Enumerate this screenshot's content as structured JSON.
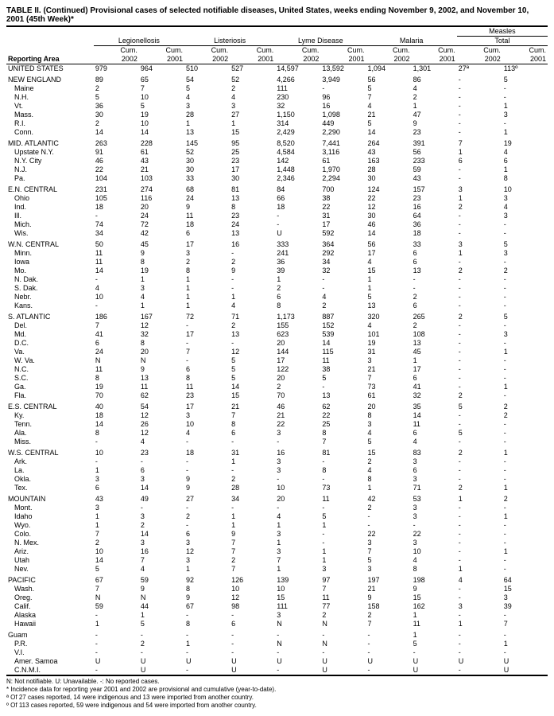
{
  "title": "TABLE II. (Continued) Provisional cases of selected notifiable diseases, United States, weeks ending November 9, 2002, and November 10, 2001 (45th Week)*",
  "columns": {
    "area_label": "Reporting Area",
    "groups": [
      "Legionellosis",
      "Listeriosis",
      "Lyme Disease",
      "Malaria",
      "Measles Total"
    ],
    "measles_super": "Measles",
    "measles_sub": "Total",
    "sub": [
      "Cum. 2002",
      "Cum. 2001"
    ]
  },
  "sections": [
    {
      "rows": [
        [
          "UNITED STATES",
          "979",
          "964",
          "510",
          "527",
          "14,597",
          "13,592",
          "1,094",
          "1,301",
          "27ª",
          "113º"
        ]
      ]
    },
    {
      "rows": [
        [
          "NEW ENGLAND",
          "89",
          "65",
          "54",
          "52",
          "4,266",
          "3,949",
          "56",
          "86",
          "-",
          "5"
        ],
        [
          "Maine",
          "2",
          "7",
          "5",
          "2",
          "111",
          "-",
          "5",
          "4",
          "-",
          "-"
        ],
        [
          "N.H.",
          "5",
          "10",
          "4",
          "4",
          "230",
          "96",
          "7",
          "2",
          "-",
          "-"
        ],
        [
          "Vt.",
          "36",
          "5",
          "3",
          "3",
          "32",
          "16",
          "4",
          "1",
          "-",
          "1"
        ],
        [
          "Mass.",
          "30",
          "19",
          "28",
          "27",
          "1,150",
          "1,098",
          "21",
          "47",
          "-",
          "3"
        ],
        [
          "R.I.",
          "2",
          "10",
          "1",
          "1",
          "314",
          "449",
          "5",
          "9",
          "-",
          "-"
        ],
        [
          "Conn.",
          "14",
          "14",
          "13",
          "15",
          "2,429",
          "2,290",
          "14",
          "23",
          "-",
          "1"
        ]
      ]
    },
    {
      "rows": [
        [
          "MID. ATLANTIC",
          "263",
          "228",
          "145",
          "95",
          "8,520",
          "7,441",
          "264",
          "391",
          "7",
          "19"
        ],
        [
          "Upstate N.Y.",
          "91",
          "61",
          "52",
          "25",
          "4,584",
          "3,116",
          "43",
          "56",
          "1",
          "4"
        ],
        [
          "N.Y. City",
          "46",
          "43",
          "30",
          "23",
          "142",
          "61",
          "163",
          "233",
          "6",
          "6"
        ],
        [
          "N.J.",
          "22",
          "21",
          "30",
          "17",
          "1,448",
          "1,970",
          "28",
          "59",
          "-",
          "1"
        ],
        [
          "Pa.",
          "104",
          "103",
          "33",
          "30",
          "2,346",
          "2,294",
          "30",
          "43",
          "-",
          "8"
        ]
      ]
    },
    {
      "rows": [
        [
          "E.N. CENTRAL",
          "231",
          "274",
          "68",
          "81",
          "84",
          "700",
          "124",
          "157",
          "3",
          "10"
        ],
        [
          "Ohio",
          "105",
          "116",
          "24",
          "13",
          "66",
          "38",
          "22",
          "23",
          "1",
          "3"
        ],
        [
          "Ind.",
          "18",
          "20",
          "9",
          "8",
          "18",
          "22",
          "12",
          "16",
          "2",
          "4"
        ],
        [
          "Ill.",
          "-",
          "24",
          "11",
          "23",
          "-",
          "31",
          "30",
          "64",
          "-",
          "3"
        ],
        [
          "Mich.",
          "74",
          "72",
          "18",
          "24",
          "-",
          "17",
          "46",
          "36",
          "-",
          "-"
        ],
        [
          "Wis.",
          "34",
          "42",
          "6",
          "13",
          "U",
          "592",
          "14",
          "18",
          "-",
          "-"
        ]
      ]
    },
    {
      "rows": [
        [
          "W.N. CENTRAL",
          "50",
          "45",
          "17",
          "16",
          "333",
          "364",
          "56",
          "33",
          "3",
          "5"
        ],
        [
          "Minn.",
          "11",
          "9",
          "3",
          "-",
          "241",
          "292",
          "17",
          "6",
          "1",
          "3"
        ],
        [
          "Iowa",
          "11",
          "8",
          "2",
          "2",
          "36",
          "34",
          "4",
          "6",
          "-",
          "-"
        ],
        [
          "Mo.",
          "14",
          "19",
          "8",
          "9",
          "39",
          "32",
          "15",
          "13",
          "2",
          "2"
        ],
        [
          "N. Dak.",
          "-",
          "1",
          "1",
          "-",
          "1",
          "-",
          "1",
          "-",
          "-",
          "-"
        ],
        [
          "S. Dak.",
          "4",
          "3",
          "1",
          "-",
          "2",
          "-",
          "1",
          "-",
          "-",
          "-"
        ],
        [
          "Nebr.",
          "10",
          "4",
          "1",
          "1",
          "6",
          "4",
          "5",
          "2",
          "-",
          "-"
        ],
        [
          "Kans.",
          "-",
          "1",
          "1",
          "4",
          "8",
          "2",
          "13",
          "6",
          "-",
          "-"
        ]
      ]
    },
    {
      "rows": [
        [
          "S. ATLANTIC",
          "186",
          "167",
          "72",
          "71",
          "1,173",
          "887",
          "320",
          "265",
          "2",
          "5"
        ],
        [
          "Del.",
          "7",
          "12",
          "-",
          "2",
          "155",
          "152",
          "4",
          "2",
          "-",
          "-"
        ],
        [
          "Md.",
          "41",
          "32",
          "17",
          "13",
          "623",
          "539",
          "101",
          "108",
          "-",
          "3"
        ],
        [
          "D.C.",
          "6",
          "8",
          "-",
          "-",
          "20",
          "14",
          "19",
          "13",
          "-",
          "-"
        ],
        [
          "Va.",
          "24",
          "20",
          "7",
          "12",
          "144",
          "115",
          "31",
          "45",
          "-",
          "1"
        ],
        [
          "W. Va.",
          "N",
          "N",
          "-",
          "5",
          "17",
          "11",
          "3",
          "1",
          "-",
          "-"
        ],
        [
          "N.C.",
          "11",
          "9",
          "6",
          "5",
          "122",
          "38",
          "21",
          "17",
          "-",
          "-"
        ],
        [
          "S.C.",
          "8",
          "13",
          "8",
          "5",
          "20",
          "5",
          "7",
          "6",
          "-",
          "-"
        ],
        [
          "Ga.",
          "19",
          "11",
          "11",
          "14",
          "2",
          "-",
          "73",
          "41",
          "-",
          "1"
        ],
        [
          "Fla.",
          "70",
          "62",
          "23",
          "15",
          "70",
          "13",
          "61",
          "32",
          "2",
          "-"
        ]
      ]
    },
    {
      "rows": [
        [
          "E.S. CENTRAL",
          "40",
          "54",
          "17",
          "21",
          "46",
          "62",
          "20",
          "35",
          "5",
          "2"
        ],
        [
          "Ky.",
          "18",
          "12",
          "3",
          "7",
          "21",
          "22",
          "8",
          "14",
          "-",
          "2"
        ],
        [
          "Tenn.",
          "14",
          "26",
          "10",
          "8",
          "22",
          "25",
          "3",
          "11",
          "-",
          "-"
        ],
        [
          "Ala.",
          "8",
          "12",
          "4",
          "6",
          "3",
          "8",
          "4",
          "6",
          "5",
          "-"
        ],
        [
          "Miss.",
          "-",
          "4",
          "-",
          "-",
          "-",
          "7",
          "5",
          "4",
          "-",
          "-"
        ]
      ]
    },
    {
      "rows": [
        [
          "W.S. CENTRAL",
          "10",
          "23",
          "18",
          "31",
          "16",
          "81",
          "15",
          "83",
          "2",
          "1"
        ],
        [
          "Ark.",
          "-",
          "-",
          "-",
          "1",
          "3",
          "-",
          "2",
          "3",
          "-",
          "-"
        ],
        [
          "La.",
          "1",
          "6",
          "-",
          "-",
          "3",
          "8",
          "4",
          "6",
          "-",
          "-"
        ],
        [
          "Okla.",
          "3",
          "3",
          "9",
          "2",
          "-",
          "-",
          "8",
          "3",
          "-",
          "-"
        ],
        [
          "Tex.",
          "6",
          "14",
          "9",
          "28",
          "10",
          "73",
          "1",
          "71",
          "2",
          "1"
        ]
      ]
    },
    {
      "rows": [
        [
          "MOUNTAIN",
          "43",
          "49",
          "27",
          "34",
          "20",
          "11",
          "42",
          "53",
          "1",
          "2"
        ],
        [
          "Mont.",
          "3",
          "-",
          "-",
          "-",
          "-",
          "-",
          "2",
          "3",
          "-",
          "-"
        ],
        [
          "Idaho",
          "1",
          "3",
          "2",
          "1",
          "4",
          "5",
          "-",
          "3",
          "-",
          "1"
        ],
        [
          "Wyo.",
          "1",
          "2",
          "-",
          "1",
          "1",
          "1",
          "-",
          "-",
          "-",
          "-"
        ],
        [
          "Colo.",
          "7",
          "14",
          "6",
          "9",
          "3",
          "-",
          "22",
          "22",
          "-",
          "-"
        ],
        [
          "N. Mex.",
          "2",
          "3",
          "3",
          "7",
          "1",
          "-",
          "3",
          "3",
          "-",
          "-"
        ],
        [
          "Ariz.",
          "10",
          "16",
          "12",
          "7",
          "3",
          "1",
          "7",
          "10",
          "-",
          "1"
        ],
        [
          "Utah",
          "14",
          "7",
          "3",
          "2",
          "7",
          "1",
          "5",
          "4",
          "-",
          "-"
        ],
        [
          "Nev.",
          "5",
          "4",
          "1",
          "7",
          "1",
          "3",
          "3",
          "8",
          "1",
          "-"
        ]
      ]
    },
    {
      "rows": [
        [
          "PACIFIC",
          "67",
          "59",
          "92",
          "126",
          "139",
          "97",
          "197",
          "198",
          "4",
          "64"
        ],
        [
          "Wash.",
          "7",
          "9",
          "8",
          "10",
          "10",
          "7",
          "21",
          "9",
          "-",
          "15"
        ],
        [
          "Oreg.",
          "N",
          "N",
          "9",
          "12",
          "15",
          "11",
          "9",
          "15",
          "-",
          "3"
        ],
        [
          "Calif.",
          "59",
          "44",
          "67",
          "98",
          "111",
          "77",
          "158",
          "162",
          "3",
          "39"
        ],
        [
          "Alaska",
          "-",
          "1",
          "-",
          "-",
          "3",
          "2",
          "2",
          "1",
          "-",
          "-"
        ],
        [
          "Hawaii",
          "1",
          "5",
          "8",
          "6",
          "N",
          "N",
          "7",
          "11",
          "1",
          "7"
        ]
      ]
    },
    {
      "rows": [
        [
          "Guam",
          "-",
          "-",
          "-",
          "-",
          "-",
          "-",
          "-",
          "1",
          "-",
          "-"
        ],
        [
          "P.R.",
          "-",
          "2",
          "1",
          "-",
          "N",
          "N",
          "-",
          "5",
          "-",
          "1"
        ],
        [
          "V.I.",
          "-",
          "-",
          "-",
          "-",
          "-",
          "-",
          "-",
          "-",
          "-",
          "-"
        ],
        [
          "Amer. Samoa",
          "U",
          "U",
          "U",
          "U",
          "U",
          "U",
          "U",
          "U",
          "U",
          "U"
        ],
        [
          "C.N.M.I.",
          "-",
          "U",
          "-",
          "U",
          "-",
          "U",
          "-",
          "U",
          "-",
          "U"
        ]
      ]
    }
  ],
  "footnotes": [
    "N: Not notifiable.        U: Unavailable.        -: No reported cases.",
    "* Incidence data for reporting year 2001 and 2002 are provisional and cumulative (year-to-date).",
    "ª Of 27 cases reported, 14 were indigenous and 13 were imported from another country.",
    "º Of 113 cases reported, 59 were indigenous and 54 were imported from another country."
  ]
}
